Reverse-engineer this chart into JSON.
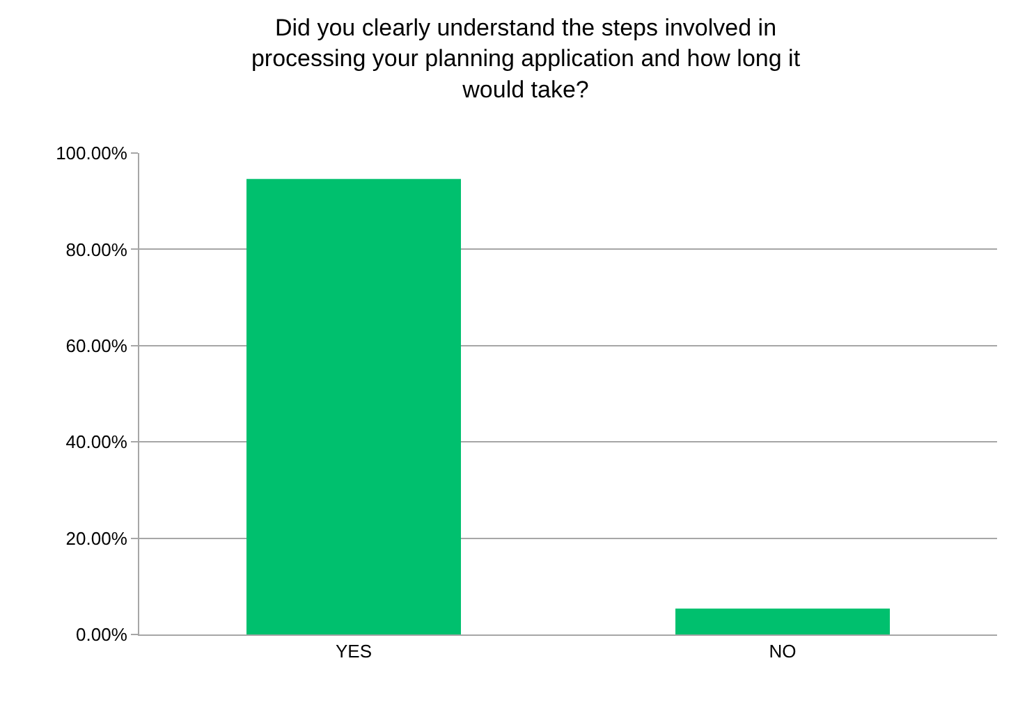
{
  "chart_data": {
    "type": "bar",
    "title": "Did you clearly understand the steps involved in processing your planning application and how long it would take?",
    "categories": [
      "YES",
      "NO"
    ],
    "values": [
      94.6,
      5.4
    ],
    "color": "#00c06e",
    "ylim": [
      0,
      100
    ],
    "yticks": [
      {
        "value": 0,
        "label": "0.00%"
      },
      {
        "value": 20,
        "label": "20.00%"
      },
      {
        "value": 40,
        "label": "40.00%"
      },
      {
        "value": 60,
        "label": "60.00%"
      },
      {
        "value": 80,
        "label": "80.00%"
      },
      {
        "value": 100,
        "label": "100.00%"
      }
    ],
    "grid": "y"
  }
}
